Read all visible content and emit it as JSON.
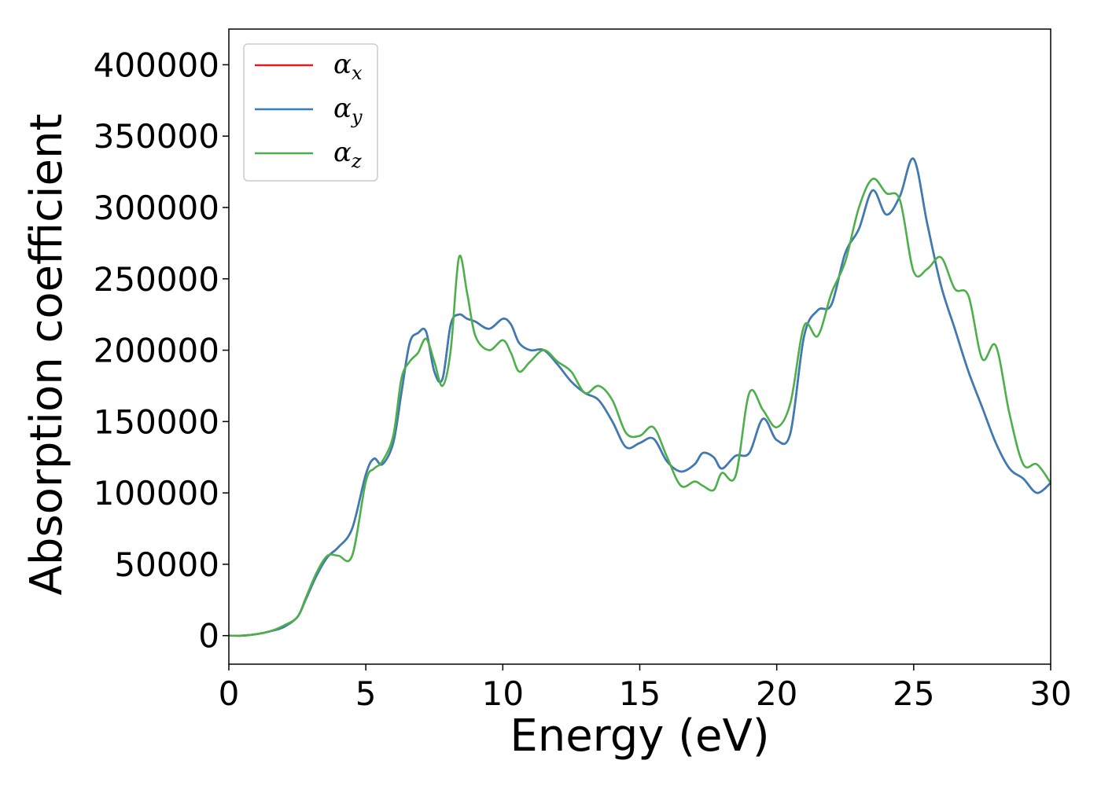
{
  "chart_data": {
    "type": "line",
    "xlabel": "Energy (eV)",
    "ylabel": "Absorption coefficient",
    "xlim": [
      0,
      30
    ],
    "ylim": [
      -20000,
      425000
    ],
    "xticks": [
      0,
      5,
      10,
      15,
      20,
      25,
      30
    ],
    "xtick_labels": [
      "0",
      "5",
      "10",
      "15",
      "20",
      "25",
      "30"
    ],
    "yticks": [
      0,
      50000,
      100000,
      150000,
      200000,
      250000,
      300000,
      350000,
      400000
    ],
    "ytick_labels": [
      "0",
      "50000",
      "100000",
      "150000",
      "200000",
      "250000",
      "300000",
      "350000",
      "400000"
    ],
    "grid": false,
    "legend_position": "top-left",
    "series": [
      {
        "name": "αx",
        "symbol": "α",
        "subscript": "x",
        "color": "#e41a1c",
        "x": [
          0,
          0.5,
          1,
          1.5,
          2,
          2.5,
          2.8,
          3.2,
          3.6,
          4,
          4.5,
          5,
          5.3,
          5.6,
          6,
          6.3,
          6.6,
          6.9,
          7.2,
          7.5,
          7.8,
          8.1,
          8.4,
          8.7,
          9,
          9.5,
          10,
          10.3,
          10.6,
          11,
          11.5,
          12,
          12.5,
          13,
          13.5,
          14,
          14.5,
          15,
          15.5,
          16,
          16.5,
          17,
          17.3,
          17.7,
          18,
          18.5,
          19,
          19.5,
          20,
          20.5,
          21,
          21.5,
          22,
          22.5,
          23,
          23.5,
          24,
          24.5,
          25,
          25.5,
          26,
          26.5,
          27,
          27.5,
          28,
          28.5,
          29,
          29.5,
          30
        ],
        "values": [
          0,
          0,
          1000,
          3000,
          6000,
          13000,
          25000,
          42000,
          55000,
          62000,
          75000,
          113000,
          124000,
          120000,
          135000,
          170000,
          205000,
          212000,
          213000,
          185000,
          180000,
          218000,
          225000,
          222000,
          220000,
          215000,
          222000,
          218000,
          205000,
          200000,
          200000,
          190000,
          178000,
          170000,
          165000,
          150000,
          132000,
          135000,
          138000,
          122000,
          115000,
          120000,
          128000,
          125000,
          117000,
          126000,
          128000,
          152000,
          137000,
          142000,
          210000,
          228000,
          232000,
          268000,
          285000,
          312000,
          295000,
          308000,
          334000,
          288000,
          245000,
          215000,
          185000,
          160000,
          135000,
          117000,
          110000,
          100000,
          107000
        ]
      },
      {
        "name": "αy",
        "symbol": "α",
        "subscript": "y",
        "color": "#377eb8",
        "x": [
          0,
          0.5,
          1,
          1.5,
          2,
          2.5,
          2.8,
          3.2,
          3.6,
          4,
          4.5,
          5,
          5.3,
          5.6,
          6,
          6.3,
          6.6,
          6.9,
          7.2,
          7.5,
          7.8,
          8.1,
          8.4,
          8.7,
          9,
          9.5,
          10,
          10.3,
          10.6,
          11,
          11.5,
          12,
          12.5,
          13,
          13.5,
          14,
          14.5,
          15,
          15.5,
          16,
          16.5,
          17,
          17.3,
          17.7,
          18,
          18.5,
          19,
          19.5,
          20,
          20.5,
          21,
          21.5,
          22,
          22.5,
          23,
          23.5,
          24,
          24.5,
          25,
          25.5,
          26,
          26.5,
          27,
          27.5,
          28,
          28.5,
          29,
          29.5,
          30
        ],
        "values": [
          0,
          0,
          1000,
          3000,
          6000,
          13000,
          25000,
          42000,
          55000,
          62000,
          75000,
          113000,
          124000,
          120000,
          135000,
          170000,
          205000,
          212000,
          213000,
          185000,
          180000,
          218000,
          225000,
          222000,
          220000,
          215000,
          222000,
          218000,
          205000,
          200000,
          200000,
          190000,
          178000,
          170000,
          165000,
          150000,
          132000,
          135000,
          138000,
          122000,
          115000,
          120000,
          128000,
          125000,
          117000,
          126000,
          128000,
          152000,
          137000,
          142000,
          210000,
          228000,
          232000,
          268000,
          285000,
          312000,
          295000,
          308000,
          334000,
          288000,
          245000,
          215000,
          185000,
          160000,
          135000,
          117000,
          110000,
          100000,
          107000
        ]
      },
      {
        "name": "αz",
        "symbol": "α",
        "subscript": "z",
        "color": "#4daf4a",
        "x": [
          0,
          0.5,
          1,
          1.5,
          2,
          2.5,
          2.8,
          3.2,
          3.6,
          4,
          4.5,
          5,
          5.3,
          5.6,
          6,
          6.3,
          6.6,
          6.9,
          7.2,
          7.5,
          7.8,
          8.1,
          8.4,
          8.7,
          9,
          9.5,
          10,
          10.3,
          10.6,
          11,
          11.5,
          12,
          12.5,
          13,
          13.5,
          14,
          14.5,
          15,
          15.5,
          16,
          16.5,
          17,
          17.3,
          17.7,
          18,
          18.5,
          19,
          19.5,
          20,
          20.5,
          21,
          21.5,
          22,
          22.5,
          23,
          23.5,
          24,
          24.5,
          25,
          25.5,
          26,
          26.5,
          27,
          27.5,
          28,
          28.5,
          29,
          29.5,
          30
        ],
        "values": [
          0,
          0,
          1000,
          3000,
          7000,
          13000,
          26000,
          44000,
          56000,
          56000,
          56000,
          108000,
          117000,
          122000,
          140000,
          180000,
          192000,
          198000,
          208000,
          192000,
          175000,
          200000,
          265000,
          240000,
          210000,
          200000,
          207000,
          198000,
          185000,
          192000,
          200000,
          192000,
          185000,
          170000,
          175000,
          165000,
          142000,
          140000,
          146000,
          125000,
          105000,
          108000,
          105000,
          102000,
          114000,
          112000,
          170000,
          158000,
          146000,
          163000,
          217000,
          210000,
          240000,
          262000,
          300000,
          320000,
          310000,
          305000,
          255000,
          257000,
          265000,
          243000,
          238000,
          194000,
          203000,
          155000,
          120000,
          120000,
          107000
        ]
      }
    ]
  }
}
